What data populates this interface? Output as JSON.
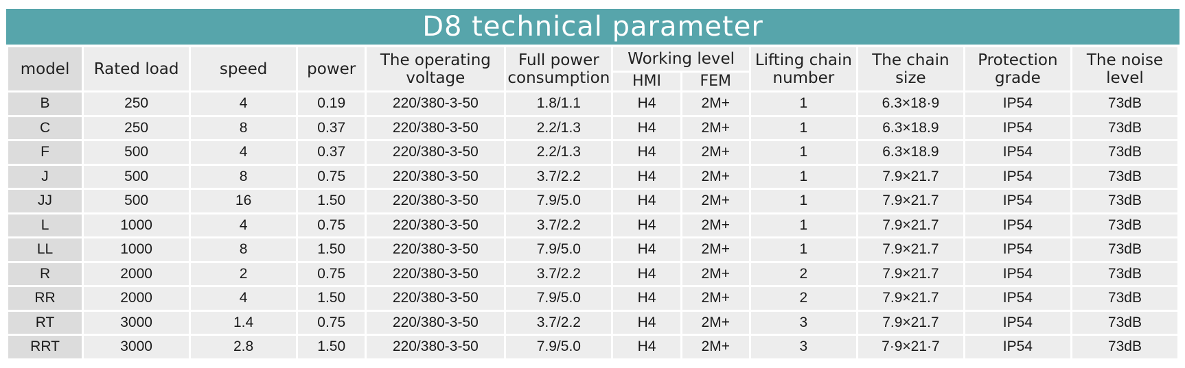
{
  "title": "D8 technical parameter",
  "headers": {
    "model": "model",
    "rated_load": "Rated load",
    "speed": "speed",
    "power": "power",
    "operating_voltage": "The operating voltage",
    "full_power_consumption": "Full power consumption",
    "working_level": "Working level",
    "hmi": "HMI",
    "fem": "FEM",
    "lifting_chain_number": "Lifting chain number",
    "chain_size": "The chain size",
    "protection_grade": "Protection grade",
    "noise_level": "The noise level"
  },
  "rows": [
    {
      "model": "B",
      "rated_load": "250",
      "speed": "4",
      "power": "0.19",
      "voltage": "220/380-3-50",
      "consumption": "1.8/1.1",
      "hmi": "H4",
      "fem": "2M+",
      "chains": "1",
      "chain_size": "6.3×18·9",
      "protection": "IP54",
      "noise": "73dB"
    },
    {
      "model": "C",
      "rated_load": "250",
      "speed": "8",
      "power": "0.37",
      "voltage": "220/380-3-50",
      "consumption": "2.2/1.3",
      "hmi": "H4",
      "fem": "2M+",
      "chains": "1",
      "chain_size": "6.3×18.9",
      "protection": "IP54",
      "noise": "73dB"
    },
    {
      "model": "F",
      "rated_load": "500",
      "speed": "4",
      "power": "0.37",
      "voltage": "220/380-3-50",
      "consumption": "2.2/1.3",
      "hmi": "H4",
      "fem": "2M+",
      "chains": "1",
      "chain_size": "6.3×18.9",
      "protection": "IP54",
      "noise": "73dB"
    },
    {
      "model": "J",
      "rated_load": "500",
      "speed": "8",
      "power": "0.75",
      "voltage": "220/380-3-50",
      "consumption": "3.7/2.2",
      "hmi": "H4",
      "fem": "2M+",
      "chains": "1",
      "chain_size": "7.9×21.7",
      "protection": "IP54",
      "noise": "73dB"
    },
    {
      "model": "JJ",
      "rated_load": "500",
      "speed": "16",
      "power": "1.50",
      "voltage": "220/380-3-50",
      "consumption": "7.9/5.0",
      "hmi": "H4",
      "fem": "2M+",
      "chains": "1",
      "chain_size": "7.9×21.7",
      "protection": "IP54",
      "noise": "73dB"
    },
    {
      "model": "L",
      "rated_load": "1000",
      "speed": "4",
      "power": "0.75",
      "voltage": "220/380-3-50",
      "consumption": "3.7/2.2",
      "hmi": "H4",
      "fem": "2M+",
      "chains": "1",
      "chain_size": "7.9×21.7",
      "protection": "IP54",
      "noise": "73dB"
    },
    {
      "model": "LL",
      "rated_load": "1000",
      "speed": "8",
      "power": "1.50",
      "voltage": "220/380-3-50",
      "consumption": "7.9/5.0",
      "hmi": "H4",
      "fem": "2M+",
      "chains": "1",
      "chain_size": "7.9×21.7",
      "protection": "IP54",
      "noise": "73dB"
    },
    {
      "model": "R",
      "rated_load": "2000",
      "speed": "2",
      "power": "0.75",
      "voltage": "220/380-3-50",
      "consumption": "3.7/2.2",
      "hmi": "H4",
      "fem": "2M+",
      "chains": "2",
      "chain_size": "7.9×21.7",
      "protection": "IP54",
      "noise": "73dB"
    },
    {
      "model": "RR",
      "rated_load": "2000",
      "speed": "4",
      "power": "1.50",
      "voltage": "220/380-3-50",
      "consumption": "7.9/5.0",
      "hmi": "H4",
      "fem": "2M+",
      "chains": "2",
      "chain_size": "7.9×21.7",
      "protection": "IP54",
      "noise": "73dB"
    },
    {
      "model": "RT",
      "rated_load": "3000",
      "speed": "1.4",
      "power": "0.75",
      "voltage": "220/380-3-50",
      "consumption": "3.7/2.2",
      "hmi": "H4",
      "fem": "2M+",
      "chains": "3",
      "chain_size": "7.9×21.7",
      "protection": "IP54",
      "noise": "73dB"
    },
    {
      "model": "RRT",
      "rated_load": "3000",
      "speed": "2.8",
      "power": "1.50",
      "voltage": "220/380-3-50",
      "consumption": "7.9/5.0",
      "hmi": "H4",
      "fem": "2M+",
      "chains": "3",
      "chain_size": "7·9×21·7",
      "protection": "IP54",
      "noise": "73dB"
    }
  ],
  "colors": {
    "title_bar": "#57a5ab",
    "cell_bg": "#ededed",
    "model_cell_bg": "#dcdcdc"
  }
}
